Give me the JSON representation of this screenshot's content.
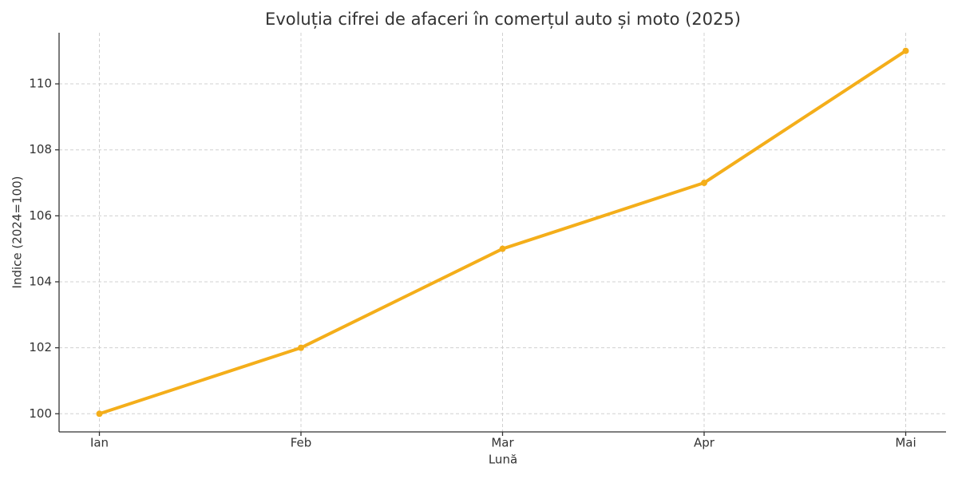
{
  "chart_data": {
    "type": "line",
    "title": "Evoluția cifrei de afaceri în comerțul auto și moto (2025)",
    "x_label": "Lună",
    "y_label": "Indice (2024=100)",
    "categories": [
      "Ian",
      "Feb",
      "Mar",
      "Apr",
      "Mai"
    ],
    "values": [
      100,
      102,
      105,
      107,
      111
    ],
    "color": "#f4ae1a",
    "ylim": [
      99.45,
      111.55
    ],
    "yticks": [
      100,
      102,
      104,
      106,
      108,
      110
    ],
    "grid": true
  }
}
